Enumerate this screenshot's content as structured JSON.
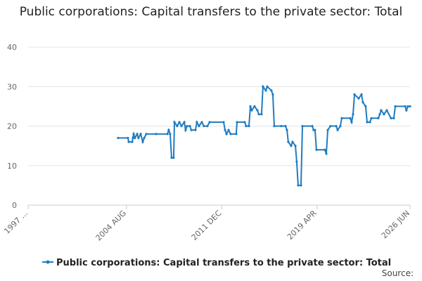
{
  "chart_data": {
    "type": "line",
    "title": "Public corporations: Capital transfers to the private sector: Total",
    "source": "Source:",
    "xlim": [
      1997.0,
      2026.42
    ],
    "xticks": [
      {
        "value": 1997.0,
        "label": "1997 ..."
      },
      {
        "value": 2004.58,
        "label": "2004 AUG"
      },
      {
        "value": 2011.92,
        "label": "2011 DEC"
      },
      {
        "value": 2019.25,
        "label": "2019 APR"
      },
      {
        "value": 2026.42,
        "label": "2026 JUN"
      }
    ],
    "ylim": [
      0,
      40
    ],
    "yticks": [
      0,
      10,
      20,
      30,
      40
    ],
    "grid": true,
    "series": [
      {
        "name": "Public corporations: Capital transfers to the private sector: Total",
        "color": "#1f7cc0",
        "x": [
          2003.93,
          2004.69,
          2004.75,
          2005.02,
          2005.07,
          2005.13,
          2005.23,
          2005.4,
          2005.5,
          2005.67,
          2005.83,
          2005.94,
          2006.1,
          2006.86,
          2007.73,
          2007.83,
          2007.94,
          2008.05,
          2008.21,
          2008.27,
          2008.48,
          2008.65,
          2008.81,
          2009.03,
          2009.13,
          2009.24,
          2009.46,
          2009.57,
          2009.89,
          2010.0,
          2010.16,
          2010.38,
          2010.54,
          2010.81,
          2010.98,
          2012.06,
          2012.17,
          2012.28,
          2012.44,
          2012.6,
          2013.03,
          2013.09,
          2013.68,
          2013.79,
          2014.01,
          2014.12,
          2014.23,
          2014.44,
          2014.66,
          2014.77,
          2014.98,
          2015.09,
          2015.31,
          2015.42,
          2015.74,
          2015.85,
          2015.96,
          2016.5,
          2016.83,
          2016.94,
          2017.04,
          2017.26,
          2017.37,
          2017.59,
          2017.69,
          2017.8,
          2018.02,
          2018.13,
          2018.89,
          2018.99,
          2019.1,
          2019.21,
          2019.86,
          2019.97,
          2020.08,
          2020.29,
          2020.73,
          2020.84,
          2021.05,
          2021.16,
          2021.81,
          2021.92,
          2022.03,
          2022.14,
          2022.46,
          2022.68,
          2022.79,
          2023.0,
          2023.11,
          2023.33,
          2023.44,
          2023.98,
          2024.09,
          2024.19,
          2024.41,
          2024.63,
          2024.95,
          2025.17,
          2025.28,
          2026.04,
          2026.14,
          2026.25,
          2026.42
        ],
        "values": [
          17,
          17,
          16,
          16,
          17,
          18,
          17,
          18,
          17,
          18,
          16,
          17,
          18,
          18,
          18,
          19,
          18,
          12,
          12,
          21,
          20,
          21,
          20,
          21,
          19,
          20,
          20,
          19,
          19,
          21,
          20,
          21,
          20,
          20,
          21,
          21,
          19,
          18,
          19,
          18,
          18,
          21,
          21,
          20,
          20,
          25,
          24,
          25,
          24,
          23,
          23,
          30,
          29,
          30,
          29,
          28,
          20,
          20,
          20,
          19,
          16,
          15,
          16,
          15,
          11,
          5,
          5,
          20,
          20,
          19,
          19,
          14,
          14,
          13,
          19,
          20,
          20,
          19,
          20,
          22,
          22,
          21,
          23,
          28,
          27,
          28,
          26,
          25,
          21,
          21,
          22,
          22,
          23,
          24,
          23,
          24,
          22,
          22,
          25,
          25,
          24,
          25,
          25
        ]
      }
    ]
  }
}
